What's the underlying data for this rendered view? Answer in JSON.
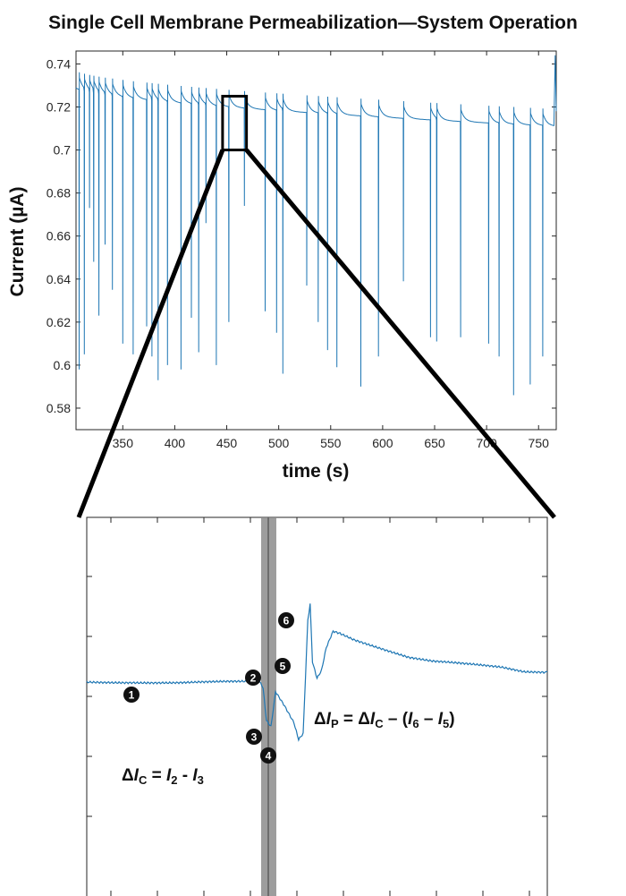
{
  "chart_data": [
    {
      "type": "line",
      "title": "Single Cell Membrane Permeabilization—System Operation",
      "xlabel": "time (s)",
      "ylabel": "Current (µA)",
      "xlim": [
        305,
        767
      ],
      "ylim": [
        0.57,
        0.746
      ],
      "x_ticks": [
        350,
        400,
        450,
        500,
        550,
        600,
        650,
        700,
        750
      ],
      "y_ticks": [
        0.58,
        0.6,
        0.62,
        0.64,
        0.66,
        0.68,
        0.7,
        0.72,
        0.74
      ],
      "x_tick_labels": [
        "350",
        "400",
        "450",
        "500",
        "550",
        "600",
        "650",
        "700",
        "750"
      ],
      "y_tick_labels": [
        "0.58",
        "0.6",
        "0.62",
        "0.64",
        "0.66",
        "0.68",
        "0.7",
        "0.72",
        "0.74"
      ],
      "line_color": "#1f77b4",
      "baseline": {
        "start": 0.729,
        "end": 0.711
      },
      "spikes": [
        {
          "t": 308,
          "min": 0.598
        },
        {
          "t": 313,
          "min": 0.605
        },
        {
          "t": 318,
          "min": 0.673
        },
        {
          "t": 322,
          "min": 0.648
        },
        {
          "t": 327,
          "min": 0.623
        },
        {
          "t": 333,
          "min": 0.656
        },
        {
          "t": 340,
          "min": 0.635
        },
        {
          "t": 350,
          "min": 0.61
        },
        {
          "t": 360,
          "min": 0.605
        },
        {
          "t": 373,
          "min": 0.618
        },
        {
          "t": 378,
          "min": 0.604
        },
        {
          "t": 384,
          "min": 0.593
        },
        {
          "t": 393,
          "min": 0.6
        },
        {
          "t": 406,
          "min": 0.598
        },
        {
          "t": 416,
          "min": 0.622
        },
        {
          "t": 423,
          "min": 0.606
        },
        {
          "t": 430,
          "min": 0.666
        },
        {
          "t": 440,
          "min": 0.6
        },
        {
          "t": 452,
          "min": 0.62
        },
        {
          "t": 467,
          "min": 0.674
        },
        {
          "t": 487,
          "min": 0.625
        },
        {
          "t": 498,
          "min": 0.615
        },
        {
          "t": 504,
          "min": 0.596
        },
        {
          "t": 527,
          "min": 0.637
        },
        {
          "t": 538,
          "min": 0.62
        },
        {
          "t": 547,
          "min": 0.607
        },
        {
          "t": 556,
          "min": 0.599
        },
        {
          "t": 579,
          "min": 0.59
        },
        {
          "t": 596,
          "min": 0.604
        },
        {
          "t": 620,
          "min": 0.639
        },
        {
          "t": 646,
          "min": 0.613
        },
        {
          "t": 652,
          "min": 0.611
        },
        {
          "t": 675,
          "min": 0.613
        },
        {
          "t": 702,
          "min": 0.61
        },
        {
          "t": 712,
          "min": 0.604
        },
        {
          "t": 726,
          "min": 0.586
        },
        {
          "t": 742,
          "min": 0.591
        },
        {
          "t": 754,
          "min": 0.604
        }
      ],
      "zoom_box": {
        "x_range": [
          446,
          469
        ],
        "y_range": [
          0.7,
          0.725
        ]
      }
    },
    {
      "type": "line",
      "description_role": "zoomed trace inset",
      "line_color": "#1f77b4",
      "shaded_band_color": "#8c8c8c",
      "trace": [
        [
          0.0,
          0.0
        ],
        [
          0.05,
          0.0
        ],
        [
          0.1,
          0.001
        ],
        [
          0.15,
          0.0
        ],
        [
          0.2,
          -0.001
        ],
        [
          0.25,
          0.0
        ],
        [
          0.3,
          0.0
        ],
        [
          0.35,
          -0.001
        ],
        [
          0.375,
          -0.003
        ],
        [
          0.383,
          -0.03
        ],
        [
          0.39,
          -0.19
        ],
        [
          0.4,
          -0.22
        ],
        [
          0.41,
          -0.05
        ],
        [
          0.43,
          -0.12
        ],
        [
          0.45,
          -0.2
        ],
        [
          0.46,
          -0.28
        ],
        [
          0.47,
          -0.25
        ],
        [
          0.48,
          0.3
        ],
        [
          0.485,
          0.38
        ],
        [
          0.49,
          0.1
        ],
        [
          0.5,
          0.02
        ],
        [
          0.51,
          0.06
        ],
        [
          0.52,
          0.17
        ],
        [
          0.535,
          0.25
        ],
        [
          0.55,
          0.24
        ],
        [
          0.58,
          0.21
        ],
        [
          0.62,
          0.18
        ],
        [
          0.66,
          0.15
        ],
        [
          0.7,
          0.12
        ],
        [
          0.75,
          0.1
        ],
        [
          0.8,
          0.09
        ],
        [
          0.85,
          0.08
        ],
        [
          0.9,
          0.07
        ],
        [
          0.95,
          0.05
        ],
        [
          1.0,
          0.05
        ]
      ],
      "markers": [
        {
          "label": "1"
        },
        {
          "label": "2"
        },
        {
          "label": "3"
        },
        {
          "label": "4"
        },
        {
          "label": "5"
        },
        {
          "label": "6"
        }
      ],
      "annotations": {
        "delta_ip": {
          "delta": "ΔI",
          "sub1": "P",
          "eq": " = ΔI",
          "sub2": "C",
          "rest": " – (I",
          "s6": "6",
          "minus": " – I",
          "s5": "5",
          "close": ")"
        },
        "delta_ic": {
          "delta": "ΔI",
          "sub1": "C",
          "eq": " = I",
          "s2": "2",
          "minus": " - I",
          "s3": "3"
        }
      }
    }
  ]
}
